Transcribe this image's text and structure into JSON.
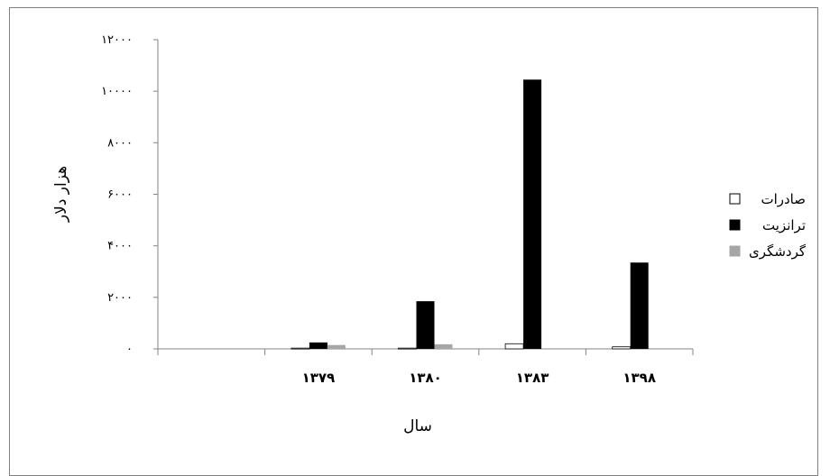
{
  "chart_data": {
    "type": "bar",
    "title": "",
    "xlabel": "سال",
    "ylabel": "هزار دلار",
    "ylim": [
      0,
      12000
    ],
    "yticks": [
      0,
      2000,
      4000,
      6000,
      8000,
      10000,
      12000
    ],
    "ytick_labels": [
      "۰",
      "۲۰۰۰",
      "۴۰۰۰",
      "۶۰۰۰",
      "۸۰۰۰",
      "۱۰۰۰۰",
      "۱۲۰۰۰"
    ],
    "categories": [
      "",
      "۱۳۷۹",
      "۱۳۸۰",
      "۱۳۸۳",
      "۱۳۹۸"
    ],
    "series": [
      {
        "name": "صادرات",
        "color": "#ffffff",
        "values": [
          0,
          30,
          30,
          200,
          80
        ]
      },
      {
        "name": "ترانزیت",
        "color": "#000000",
        "values": [
          0,
          250,
          1850,
          10450,
          3350
        ]
      },
      {
        "name": "گردشگری",
        "color": "#a6a6a6",
        "values": [
          0,
          150,
          180,
          0,
          0
        ]
      }
    ],
    "legend": "right",
    "grid": false
  }
}
